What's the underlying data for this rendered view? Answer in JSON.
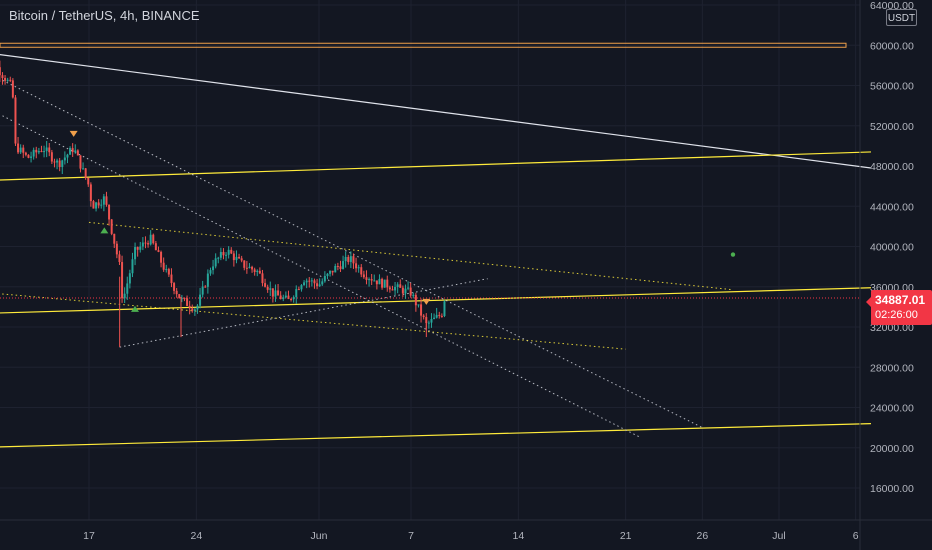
{
  "title": "Bitcoin / TetherUS, 4h, BINANCE",
  "currency_button": "USDT",
  "last_price": {
    "value": "34887.01",
    "countdown": "02:26:00"
  },
  "colors": {
    "background": "#131722",
    "grid": "#1e2230",
    "text": "#b2b5be",
    "up": "#26a69a",
    "down": "#ef5350",
    "trendline": "#ffeb3b",
    "resistance": "#f0a04b",
    "channel": "#e0e3eb",
    "price_tag": "#f23645"
  },
  "chart_data": {
    "type": "candlestick",
    "title": "Bitcoin / TetherUS, 4h, BINANCE",
    "y_axis": {
      "min": 14000,
      "max": 65000,
      "ticks": [
        "64000.00",
        "60000.00",
        "56000.00",
        "52000.00",
        "48000.00",
        "44000.00",
        "40000.00",
        "36000.00",
        "32000.00",
        "28000.00",
        "24000.00",
        "20000.00",
        "16000.00"
      ]
    },
    "x_axis": {
      "ticks": [
        "17",
        "24",
        "Jun",
        "7",
        "14",
        "21",
        "26",
        "Jul",
        "6"
      ]
    },
    "price_path": [
      [
        "May 10",
        56500
      ],
      [
        "May 11",
        57800
      ],
      [
        "May 12",
        55800
      ],
      [
        "May 12",
        50000
      ],
      [
        "May 13",
        48800
      ],
      [
        "May 14",
        49800
      ],
      [
        "May 15",
        48200
      ],
      [
        "May 16",
        49800
      ],
      [
        "May 17",
        46000
      ],
      [
        "May 17",
        44000
      ],
      [
        "May 18",
        44800
      ],
      [
        "May 18",
        43600
      ],
      [
        "May 19",
        38000
      ],
      [
        "May 19",
        34500
      ],
      [
        "May 20",
        39500
      ],
      [
        "May 21",
        40800
      ],
      [
        "May 22",
        37500
      ],
      [
        "May 23",
        34700
      ],
      [
        "May 24",
        33800
      ],
      [
        "May 25",
        38200
      ],
      [
        "May 26",
        39600
      ],
      [
        "May 27",
        38200
      ],
      [
        "May 28",
        37500
      ],
      [
        "May 29",
        35300
      ],
      [
        "May 30",
        34600
      ],
      [
        "May 31",
        36800
      ],
      [
        "Jun 1",
        36200
      ],
      [
        "Jun 2",
        37800
      ],
      [
        "Jun 3",
        38800
      ],
      [
        "Jun 4",
        37200
      ],
      [
        "Jun 5",
        36400
      ],
      [
        "Jun 6",
        35900
      ],
      [
        "Jun 7",
        35400
      ],
      [
        "Jun 8",
        32200
      ],
      [
        "Jun 9",
        33300
      ],
      [
        "Jun 9",
        34887.01
      ]
    ],
    "markers": [
      {
        "type": "sell",
        "date": "May 16"
      },
      {
        "type": "buy",
        "date": "May 18"
      },
      {
        "type": "buy",
        "date": "May 20"
      },
      {
        "type": "sell",
        "date": "Jun 8"
      }
    ],
    "drawings": [
      {
        "type": "horizontal-resistance",
        "price": 60000
      },
      {
        "type": "trendline-solid",
        "color": "white",
        "from": [
          "May 9",
          59500
        ],
        "to": [
          "Jul 7",
          47800
        ]
      },
      {
        "type": "trendline-solid",
        "color": "yellow",
        "from": [
          "May 9",
          46500
        ],
        "to": [
          "Jul 7",
          49400
        ]
      },
      {
        "type": "trendline-solid",
        "color": "yellow",
        "from": [
          "May 9",
          33300
        ],
        "to": [
          "Jul 7",
          35900
        ]
      },
      {
        "type": "trendline-solid",
        "color": "yellow",
        "from": [
          "May 9",
          20000
        ],
        "to": [
          "Jul 7",
          22400
        ]
      }
    ]
  }
}
